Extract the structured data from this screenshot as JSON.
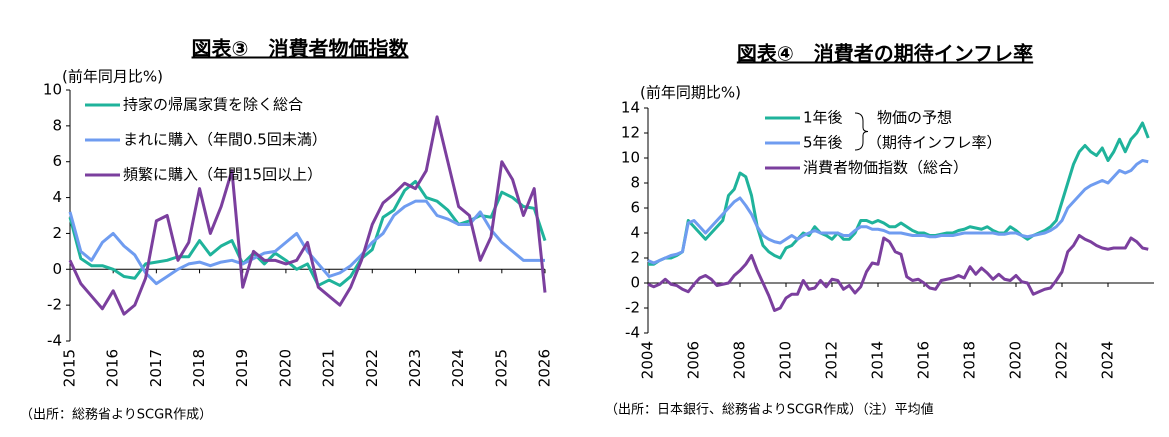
{
  "chart_data": [
    {
      "type": "line",
      "title": "図表③　消費者物価指数",
      "y_label": "(前年同月比%)",
      "source": "（出所：総務省よりSCGR作成）",
      "xlim": [
        2015,
        2026
      ],
      "xticks": [
        2015,
        2016,
        2017,
        2018,
        2019,
        2020,
        2021,
        2022,
        2023,
        2024,
        2025,
        2026
      ],
      "ylim": [
        -4,
        10
      ],
      "yticks": [
        -4,
        -2,
        0,
        2,
        4,
        6,
        8,
        10
      ],
      "legend": "upper left",
      "x": [
        2015,
        2015.25,
        2015.5,
        2015.75,
        2016,
        2016.25,
        2016.5,
        2016.75,
        2017,
        2017.25,
        2017.5,
        2017.75,
        2018,
        2018.25,
        2018.5,
        2018.75,
        2019,
        2019.25,
        2019.5,
        2019.75,
        2020,
        2020.25,
        2020.5,
        2020.75,
        2021,
        2021.25,
        2021.5,
        2021.75,
        2022,
        2022.25,
        2022.5,
        2022.75,
        2023,
        2023.25,
        2023.5,
        2023.75,
        2024,
        2024.25,
        2024.5,
        2024.75,
        2025,
        2025.25,
        2025.5,
        2025.75,
        2026
      ],
      "series": [
        {
          "name": "持家の帰属家賃を除く総合",
          "color": "#1fb39b",
          "values": [
            2.9,
            0.6,
            0.2,
            0.2,
            0.0,
            -0.4,
            -0.5,
            0.3,
            0.4,
            0.5,
            0.7,
            0.7,
            1.6,
            0.8,
            1.3,
            1.6,
            0.3,
            0.9,
            0.3,
            0.9,
            0.5,
            0.0,
            0.3,
            -0.9,
            -0.6,
            -0.9,
            -0.4,
            0.6,
            1.1,
            2.9,
            3.3,
            4.4,
            4.9,
            4.0,
            3.8,
            3.3,
            2.5,
            2.7,
            3.0,
            2.9,
            4.3,
            4.0,
            3.5,
            3.4,
            1.6
          ]
        },
        {
          "name": "まれに購入（年間0.5回未満）",
          "color": "#6f9cf0",
          "values": [
            3.2,
            1.0,
            0.5,
            1.5,
            2.0,
            1.3,
            0.8,
            -0.2,
            -0.8,
            -0.4,
            0.0,
            0.3,
            0.4,
            0.2,
            0.4,
            0.5,
            0.3,
            0.6,
            0.9,
            1.0,
            1.5,
            2.0,
            1.0,
            0.3,
            -0.4,
            -0.2,
            0.2,
            0.8,
            1.5,
            2.0,
            3.0,
            3.5,
            3.8,
            3.8,
            3.0,
            2.8,
            2.5,
            2.5,
            3.2,
            2.2,
            1.5,
            1.0,
            0.5,
            0.5,
            0.5
          ]
        },
        {
          "name": "頻繁に購入（年間15回以上）",
          "color": "#7b3f9e",
          "values": [
            0.5,
            -0.8,
            -1.5,
            -2.2,
            -1.2,
            -2.5,
            -2.0,
            -0.5,
            2.7,
            3.0,
            0.5,
            1.5,
            4.5,
            2.0,
            3.5,
            5.5,
            -1.0,
            1.0,
            0.5,
            0.5,
            0.3,
            0.5,
            1.5,
            -1.0,
            -1.5,
            -2.0,
            -1.0,
            0.5,
            2.5,
            3.7,
            4.2,
            4.8,
            4.5,
            5.5,
            8.5,
            6.0,
            3.5,
            3.0,
            0.5,
            1.8,
            6.0,
            5.0,
            3.0,
            4.5,
            -1.3
          ]
        }
      ]
    },
    {
      "type": "line",
      "title": "図表④　消費者の期待インフレ率",
      "y_label": "(前年同期比%)",
      "source": "（出所：日本銀行、総務省よりSCGR作成）（注）平均値",
      "xlim": [
        2004,
        2026
      ],
      "xticks": [
        2004,
        2006,
        2008,
        2010,
        2012,
        2014,
        2016,
        2018,
        2020,
        2022,
        2024
      ],
      "ylim": [
        -4,
        14
      ],
      "yticks": [
        -4,
        -2,
        0,
        2,
        4,
        6,
        8,
        10,
        12,
        14
      ],
      "legend": "upper center",
      "legend_note": [
        "物価の予想",
        "（期待インフレ率）"
      ],
      "x": [
        2004,
        2004.25,
        2004.5,
        2004.75,
        2005,
        2005.25,
        2005.5,
        2005.75,
        2006,
        2006.25,
        2006.5,
        2006.75,
        2007,
        2007.25,
        2007.5,
        2007.75,
        2008,
        2008.25,
        2008.5,
        2008.75,
        2009,
        2009.25,
        2009.5,
        2009.75,
        2010,
        2010.25,
        2010.5,
        2010.75,
        2011,
        2011.25,
        2011.5,
        2011.75,
        2012,
        2012.25,
        2012.5,
        2012.75,
        2013,
        2013.25,
        2013.5,
        2013.75,
        2014,
        2014.25,
        2014.5,
        2014.75,
        2015,
        2015.25,
        2015.5,
        2015.75,
        2016,
        2016.25,
        2016.5,
        2016.75,
        2017,
        2017.25,
        2017.5,
        2017.75,
        2018,
        2018.25,
        2018.5,
        2018.75,
        2019,
        2019.25,
        2019.5,
        2019.75,
        2020,
        2020.25,
        2020.5,
        2020.75,
        2021,
        2021.25,
        2021.5,
        2021.75,
        2022,
        2022.25,
        2022.5,
        2022.75,
        2023,
        2023.25,
        2023.5,
        2023.75,
        2024,
        2024.25,
        2024.5,
        2024.75,
        2025,
        2025.25,
        2025.5,
        2025.75
      ],
      "series": [
        {
          "name": "1年後",
          "color": "#1fb39b",
          "values": [
            1.5,
            1.5,
            1.8,
            2.0,
            2.0,
            2.2,
            2.5,
            5.0,
            4.5,
            4.0,
            3.5,
            4.0,
            4.5,
            5.0,
            7.0,
            7.5,
            8.8,
            8.5,
            7.0,
            4.5,
            3.0,
            2.5,
            2.2,
            2.0,
            2.8,
            3.0,
            3.5,
            4.0,
            3.8,
            4.5,
            4.0,
            3.8,
            3.5,
            4.0,
            3.5,
            3.5,
            4.0,
            5.0,
            5.0,
            4.8,
            5.0,
            4.8,
            4.5,
            4.5,
            4.8,
            4.5,
            4.2,
            4.0,
            4.0,
            3.8,
            3.8,
            3.9,
            4.0,
            4.0,
            4.2,
            4.3,
            4.5,
            4.4,
            4.3,
            4.5,
            4.2,
            4.0,
            4.0,
            4.5,
            4.2,
            3.8,
            3.5,
            3.8,
            4.0,
            4.2,
            4.5,
            5.0,
            6.5,
            8.0,
            9.5,
            10.5,
            11.0,
            10.5,
            10.2,
            10.8,
            9.8,
            10.5,
            11.5,
            10.5,
            11.5,
            12.0,
            12.8,
            11.6
          ]
        },
        {
          "name": "5年後",
          "color": "#6f9cf0",
          "values": [
            1.8,
            1.6,
            1.8,
            2.0,
            2.2,
            2.3,
            2.5,
            4.8,
            5.0,
            4.5,
            4.0,
            4.5,
            5.0,
            5.5,
            6.0,
            6.5,
            6.8,
            6.2,
            5.5,
            4.5,
            3.8,
            3.5,
            3.3,
            3.2,
            3.5,
            3.8,
            3.5,
            3.8,
            4.0,
            4.2,
            4.0,
            4.0,
            4.0,
            4.0,
            3.8,
            3.8,
            4.2,
            4.5,
            4.5,
            4.3,
            4.3,
            4.2,
            4.0,
            4.0,
            4.0,
            3.9,
            3.8,
            3.8,
            3.8,
            3.7,
            3.7,
            3.8,
            3.8,
            3.8,
            3.9,
            4.0,
            4.0,
            4.0,
            4.0,
            4.0,
            4.0,
            3.9,
            3.9,
            4.0,
            4.0,
            3.8,
            3.7,
            3.8,
            3.9,
            4.0,
            4.2,
            4.5,
            5.0,
            6.0,
            6.5,
            7.0,
            7.5,
            7.8,
            8.0,
            8.2,
            8.0,
            8.5,
            9.0,
            8.8,
            9.0,
            9.5,
            9.8,
            9.7
          ]
        },
        {
          "name": "消費者物価指数（総合）",
          "color": "#7b3f9e",
          "values": [
            -0.1,
            -0.3,
            -0.1,
            0.3,
            -0.1,
            -0.2,
            -0.5,
            -0.7,
            -0.1,
            0.4,
            0.6,
            0.3,
            -0.2,
            -0.1,
            0.0,
            0.6,
            1.0,
            1.5,
            2.2,
            1.0,
            0.0,
            -1.0,
            -2.2,
            -2.0,
            -1.2,
            -0.9,
            -0.9,
            0.2,
            -0.5,
            -0.4,
            0.2,
            -0.3,
            0.3,
            0.2,
            -0.5,
            -0.2,
            -0.8,
            -0.3,
            0.9,
            1.6,
            1.5,
            3.6,
            3.3,
            2.5,
            2.3,
            0.5,
            0.2,
            0.3,
            0.0,
            -0.4,
            -0.5,
            0.2,
            0.3,
            0.4,
            0.6,
            0.4,
            1.3,
            0.7,
            1.2,
            0.8,
            0.3,
            0.7,
            0.3,
            0.2,
            0.6,
            0.1,
            0.0,
            -0.9,
            -0.7,
            -0.5,
            -0.4,
            0.2,
            0.9,
            2.5,
            3.0,
            3.8,
            3.5,
            3.3,
            3.0,
            2.8,
            2.7,
            2.8,
            2.8,
            2.8,
            3.6,
            3.3,
            2.8,
            2.7
          ]
        }
      ]
    }
  ]
}
